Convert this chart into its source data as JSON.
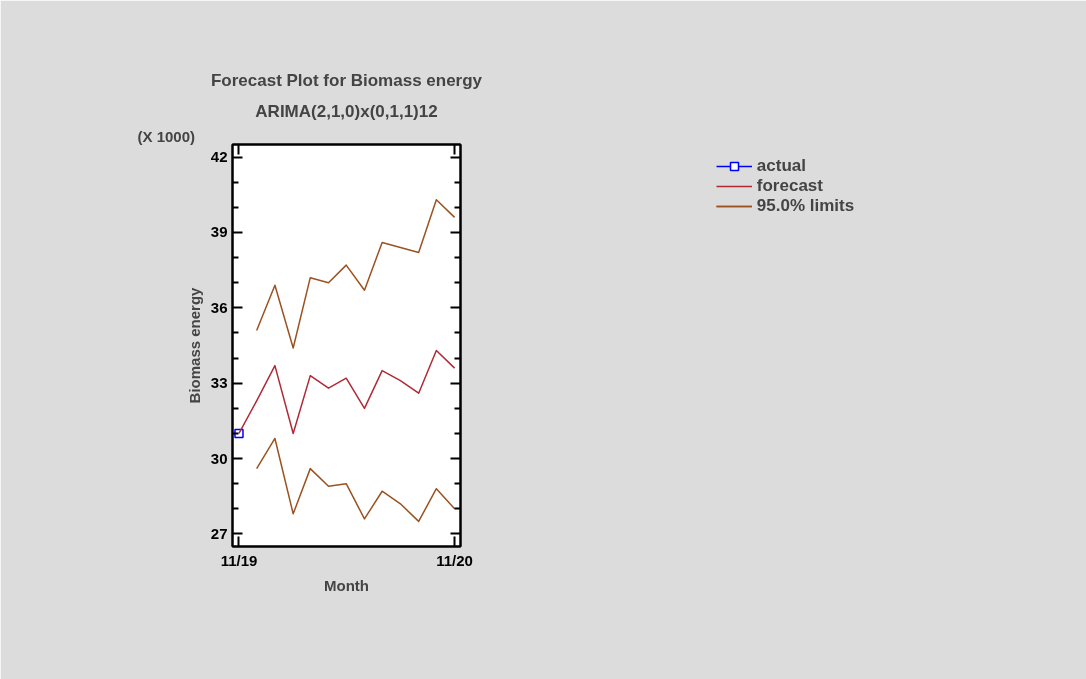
{
  "chart_data": {
    "type": "line",
    "title": "Forecast Plot for Biomass energy",
    "subtitle": "ARIMA(2,1,0)x(0,1,1)12",
    "xlabel": "Month",
    "ylabel": "Biomass energy",
    "annotations": [
      "(X 1000)"
    ],
    "x": [
      "2019-11",
      "2019-12",
      "2020-01",
      "2020-02",
      "2020-03",
      "2020-04",
      "2020-05",
      "2020-06",
      "2020-07",
      "2020-08",
      "2020-09",
      "2020-10",
      "2020-11"
    ],
    "series": [
      {
        "name": "actual",
        "color": "#0000ff",
        "marker": "square",
        "x": [
          "2019-11"
        ],
        "values": [
          31.0
        ]
      },
      {
        "name": "forecast",
        "color": "#b02a36",
        "marker": "none",
        "values": [
          31.0,
          32.3,
          33.7,
          31.0,
          33.3,
          32.8,
          33.2,
          32.0,
          33.5,
          33.1,
          32.6,
          34.3,
          33.6
        ]
      },
      {
        "name": "95.0% limits",
        "color": "#9c5220",
        "marker": "none",
        "values": [
          null,
          35.1,
          36.9,
          34.4,
          37.2,
          37.0,
          37.7,
          36.7,
          38.6,
          38.4,
          38.2,
          40.3,
          39.6
        ]
      },
      {
        "color": "#9c5220",
        "marker": "none",
        "values": [
          null,
          29.6,
          30.8,
          27.8,
          29.6,
          28.9,
          29.0,
          27.6,
          28.7,
          28.2,
          27.5,
          28.8,
          28.0
        ]
      }
    ],
    "xlim": [
      "2019-10-21",
      "2020-11-11"
    ],
    "xticks": [
      {
        "value": "2019-11",
        "label": "11/19"
      },
      {
        "value": "2020-11",
        "label": "11/20"
      }
    ],
    "ylim": [
      26.5,
      42.5
    ],
    "yticks": [
      27,
      {
        "value": 28,
        "label": null
      },
      {
        "value": 29,
        "label": null
      },
      30,
      {
        "value": 31,
        "label": null
      },
      {
        "value": 32,
        "label": null
      },
      33,
      {
        "value": 34,
        "label": null
      },
      {
        "value": 35,
        "label": null
      },
      36,
      {
        "value": 37,
        "label": null
      },
      {
        "value": 38,
        "label": null
      },
      39,
      {
        "value": 40,
        "label": null
      },
      {
        "value": 41,
        "label": null
      },
      42
    ],
    "grid": false,
    "legend": "right",
    "line_style": "solid"
  }
}
